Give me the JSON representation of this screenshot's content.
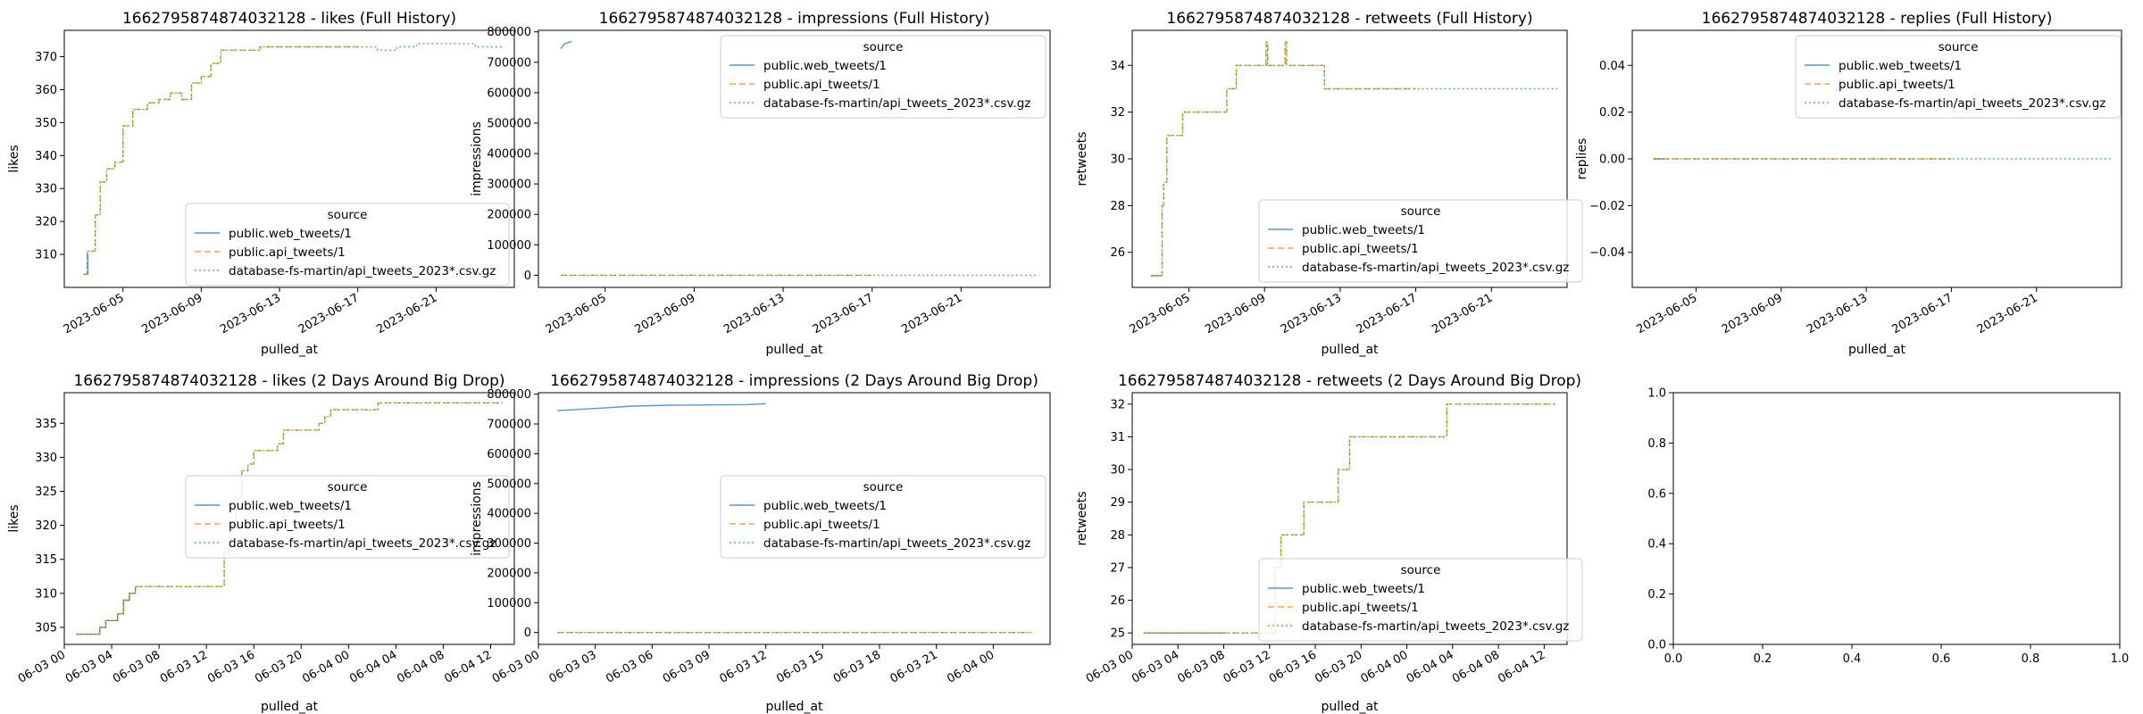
{
  "figure": {
    "background": "#ffffff"
  },
  "legend": {
    "title": "source",
    "entries": [
      {
        "label": "public.web_tweets/1",
        "color": "#1f77b4",
        "style": "solid"
      },
      {
        "label": "public.api_tweets/1",
        "color": "#ff7f0e",
        "style": "dashed"
      },
      {
        "label": "database-fs-martin/api_tweets_2023*.csv.gz",
        "color": "#2ca02c",
        "style": "dotted"
      }
    ]
  },
  "chart_data": [
    {
      "title": "1662795874874032128 - likes (Full History)",
      "type": "line",
      "xlabel": "pulled_at",
      "ylabel": "likes",
      "x_type": "date",
      "xlim": [
        "2023-06-02",
        "2023-06-25"
      ],
      "x_ticks": [
        "2023-06-05",
        "2023-06-09",
        "2023-06-13",
        "2023-06-17",
        "2023-06-21"
      ],
      "ylim": [
        300,
        378
      ],
      "y_ticks": [
        "310",
        "320",
        "330",
        "340",
        "350",
        "360",
        "370"
      ],
      "legend_position": "lower-right",
      "series": [
        {
          "name": "public.web_tweets/1",
          "x": [
            "2023-06-03 00:00",
            "2023-06-03 05:00"
          ],
          "y": [
            304,
            310
          ]
        },
        {
          "name": "public.api_tweets/1",
          "x": [
            "2023-06-03 00:00",
            "2023-06-03 04:00",
            "2023-06-03 10:00",
            "2023-06-03 14:00",
            "2023-06-03 20:00",
            "2023-06-04 04:00",
            "2023-06-04 14:00",
            "2023-06-05 00:00",
            "2023-06-05 12:00",
            "2023-06-06 06:00",
            "2023-06-06 20:00",
            "2023-06-07 10:00",
            "2023-06-08 00:00",
            "2023-06-08 12:00",
            "2023-06-09 00:00",
            "2023-06-09 12:00",
            "2023-06-10 00:00",
            "2023-06-11 00:00",
            "2023-06-12 00:00",
            "2023-06-13 00:00",
            "2023-06-14 00:00",
            "2023-06-16 00:00",
            "2023-06-17 00:00"
          ],
          "y": [
            304,
            311,
            311,
            322,
            332,
            336,
            338,
            349,
            354,
            356,
            357,
            359,
            357,
            362,
            364,
            368,
            372,
            372,
            373,
            373,
            373,
            373,
            373
          ]
        },
        {
          "name": "database-fs-martin/api_tweets_2023*.csv.gz",
          "x": [
            "2023-06-03 00:00",
            "2023-06-03 04:00",
            "2023-06-03 10:00",
            "2023-06-03 14:00",
            "2023-06-03 20:00",
            "2023-06-04 04:00",
            "2023-06-04 14:00",
            "2023-06-05 00:00",
            "2023-06-05 12:00",
            "2023-06-06 06:00",
            "2023-06-06 20:00",
            "2023-06-07 10:00",
            "2023-06-08 00:00",
            "2023-06-08 12:00",
            "2023-06-09 00:00",
            "2023-06-09 12:00",
            "2023-06-10 00:00",
            "2023-06-11 00:00",
            "2023-06-12 00:00",
            "2023-06-13 00:00",
            "2023-06-14 00:00",
            "2023-06-16 00:00",
            "2023-06-17 00:00",
            "2023-06-18 00:00",
            "2023-06-19 00:00",
            "2023-06-20 00:00",
            "2023-06-21 00:00",
            "2023-06-22 00:00",
            "2023-06-23 00:00",
            "2023-06-24 12:00"
          ],
          "y": [
            304,
            311,
            311,
            322,
            332,
            336,
            338,
            349,
            354,
            356,
            357,
            359,
            357,
            362,
            364,
            368,
            372,
            372,
            373,
            373,
            373,
            373,
            373,
            372,
            373,
            374,
            374,
            374,
            373,
            373
          ]
        }
      ]
    },
    {
      "title": "1662795874874032128 - impressions (Full History)",
      "type": "line",
      "xlabel": "pulled_at",
      "ylabel": "impressions",
      "x_type": "date",
      "xlim": [
        "2023-06-02",
        "2023-06-25"
      ],
      "x_ticks": [
        "2023-06-05",
        "2023-06-09",
        "2023-06-13",
        "2023-06-17",
        "2023-06-21"
      ],
      "ylim": [
        -40000,
        805000
      ],
      "y_ticks": [
        "0",
        "100000",
        "200000",
        "300000",
        "400000",
        "500000",
        "600000",
        "700000",
        "800000"
      ],
      "legend_position": "top-right",
      "series": [
        {
          "name": "public.web_tweets/1",
          "x": [
            "2023-06-03 00:00",
            "2023-06-03 04:00",
            "2023-06-03 08:00",
            "2023-06-03 12:00"
          ],
          "y": [
            745000,
            760000,
            765000,
            768000
          ]
        },
        {
          "name": "public.api_tweets/1",
          "x": [
            "2023-06-03 00:00",
            "2023-06-17 00:00"
          ],
          "y": [
            0,
            0
          ]
        },
        {
          "name": "database-fs-martin/api_tweets_2023*.csv.gz",
          "x": [
            "2023-06-03 00:00",
            "2023-06-24 12:00"
          ],
          "y": [
            0,
            0
          ]
        }
      ]
    },
    {
      "title": "1662795874874032128 - retweets (Full History)",
      "type": "line",
      "xlabel": "pulled_at",
      "ylabel": "retweets",
      "x_type": "date",
      "xlim": [
        "2023-06-02",
        "2023-06-25"
      ],
      "x_ticks": [
        "2023-06-05",
        "2023-06-09",
        "2023-06-13",
        "2023-06-17",
        "2023-06-21"
      ],
      "ylim": [
        24.5,
        35.5
      ],
      "y_ticks": [
        "26",
        "28",
        "30",
        "32",
        "34"
      ],
      "legend_position": "lower-right",
      "series": [
        {
          "name": "public.web_tweets/1",
          "x": [
            "2023-06-03 00:00",
            "2023-06-03 12:00"
          ],
          "y": [
            25,
            25
          ]
        },
        {
          "name": "public.api_tweets/1",
          "x": [
            "2023-06-03 00:00",
            "2023-06-03 12:00",
            "2023-06-03 14:00",
            "2023-06-03 16:00",
            "2023-06-03 20:00",
            "2023-06-04 04:00",
            "2023-06-04 16:00",
            "2023-06-05 00:00",
            "2023-06-07 00:00",
            "2023-06-07 12:00",
            "2023-06-09 00:00",
            "2023-06-09 02:00",
            "2023-06-09 04:00",
            "2023-06-10 00:00",
            "2023-06-10 02:00",
            "2023-06-10 04:00",
            "2023-06-12 00:00",
            "2023-06-12 04:00",
            "2023-06-17 00:00"
          ],
          "y": [
            25,
            25,
            28,
            29,
            31,
            31,
            32,
            32,
            33,
            34,
            34,
            35,
            34,
            34,
            35,
            34,
            34,
            33,
            33
          ]
        },
        {
          "name": "database-fs-martin/api_tweets_2023*.csv.gz",
          "x": [
            "2023-06-03 00:00",
            "2023-06-03 12:00",
            "2023-06-03 14:00",
            "2023-06-03 16:00",
            "2023-06-03 20:00",
            "2023-06-04 04:00",
            "2023-06-04 16:00",
            "2023-06-05 00:00",
            "2023-06-07 00:00",
            "2023-06-07 12:00",
            "2023-06-09 00:00",
            "2023-06-09 02:00",
            "2023-06-09 04:00",
            "2023-06-10 00:00",
            "2023-06-10 02:00",
            "2023-06-10 04:00",
            "2023-06-12 00:00",
            "2023-06-12 04:00",
            "2023-06-24 12:00"
          ],
          "y": [
            25,
            25,
            28,
            29,
            31,
            31,
            32,
            32,
            33,
            34,
            34,
            35,
            34,
            34,
            35,
            34,
            34,
            33,
            33
          ]
        }
      ]
    },
    {
      "title": "1662795874874032128 - replies (Full History)",
      "type": "line",
      "xlabel": "pulled_at",
      "ylabel": "replies",
      "x_type": "date",
      "xlim": [
        "2023-06-02",
        "2023-06-25"
      ],
      "x_ticks": [
        "2023-06-05",
        "2023-06-09",
        "2023-06-13",
        "2023-06-17",
        "2023-06-21"
      ],
      "ylim": [
        -0.055,
        0.055
      ],
      "y_ticks": [
        "−0.04",
        "−0.02",
        "0.00",
        "0.02",
        "0.04"
      ],
      "legend_position": "top-right",
      "series": [
        {
          "name": "public.web_tweets/1",
          "x": [
            "2023-06-03 00:00",
            "2023-06-03 12:00"
          ],
          "y": [
            0,
            0
          ]
        },
        {
          "name": "public.api_tweets/1",
          "x": [
            "2023-06-03 00:00",
            "2023-06-17 00:00"
          ],
          "y": [
            0,
            0
          ]
        },
        {
          "name": "database-fs-martin/api_tweets_2023*.csv.gz",
          "x": [
            "2023-06-03 00:00",
            "2023-06-24 12:00"
          ],
          "y": [
            0,
            0
          ]
        }
      ]
    },
    {
      "title": "1662795874874032128 - likes (2 Days Around Big Drop)",
      "type": "line",
      "xlabel": "pulled_at",
      "ylabel": "likes",
      "x_type": "date",
      "xlim": [
        "2023-06-03 00:00",
        "2023-06-04 14:00"
      ],
      "x_ticks": [
        "06-03 00",
        "06-03 04",
        "06-03 08",
        "06-03 12",
        "06-03 16",
        "06-03 20",
        "06-04 00",
        "06-04 04",
        "06-04 08",
        "06-04 12"
      ],
      "x_tick_values": [
        "2023-06-03 00:00",
        "2023-06-03 04:00",
        "2023-06-03 08:00",
        "2023-06-03 12:00",
        "2023-06-03 16:00",
        "2023-06-03 20:00",
        "2023-06-04 00:00",
        "2023-06-04 04:00",
        "2023-06-04 08:00",
        "2023-06-04 12:00"
      ],
      "ylim": [
        302.5,
        339.5
      ],
      "y_ticks": [
        "305",
        "310",
        "315",
        "320",
        "325",
        "330",
        "335"
      ],
      "legend_position": "center-right",
      "series": [
        {
          "name": "public.web_tweets/1",
          "x": [
            "2023-06-03 01:00",
            "2023-06-03 03:00",
            "2023-06-03 03:30",
            "2023-06-03 04:30",
            "2023-06-03 05:00",
            "2023-06-03 05:30",
            "2023-06-03 06:00"
          ],
          "y": [
            304,
            305,
            306,
            307,
            309,
            310,
            311
          ]
        },
        {
          "name": "public.api_tweets/1",
          "x": [
            "2023-06-03 01:00",
            "2023-06-03 03:00",
            "2023-06-03 03:30",
            "2023-06-03 04:30",
            "2023-06-03 05:00",
            "2023-06-03 05:30",
            "2023-06-03 06:00",
            "2023-06-03 13:00",
            "2023-06-03 13:30",
            "2023-06-03 14:00",
            "2023-06-03 14:30",
            "2023-06-03 15:00",
            "2023-06-03 15:30",
            "2023-06-03 16:00",
            "2023-06-03 17:30",
            "2023-06-03 18:00",
            "2023-06-03 18:30",
            "2023-06-03 21:00",
            "2023-06-03 21:30",
            "2023-06-03 22:00",
            "2023-06-03 22:30",
            "2023-06-04 00:00",
            "2023-06-04 02:00",
            "2023-06-04 02:30",
            "2023-06-04 03:00",
            "2023-06-04 13:00"
          ],
          "y": [
            304,
            305,
            306,
            307,
            309,
            310,
            311,
            311,
            316,
            320,
            324,
            328,
            329,
            331,
            331,
            332,
            334,
            334,
            335,
            336,
            337,
            337,
            337,
            338,
            338,
            338
          ]
        },
        {
          "name": "database-fs-martin/api_tweets_2023*.csv.gz",
          "x": [
            "2023-06-03 01:00",
            "2023-06-03 03:00",
            "2023-06-03 03:30",
            "2023-06-03 04:30",
            "2023-06-03 05:00",
            "2023-06-03 05:30",
            "2023-06-03 06:00",
            "2023-06-03 13:00",
            "2023-06-03 13:30",
            "2023-06-03 14:00",
            "2023-06-03 14:30",
            "2023-06-03 15:00",
            "2023-06-03 15:30",
            "2023-06-03 16:00",
            "2023-06-03 17:30",
            "2023-06-03 18:00",
            "2023-06-03 18:30",
            "2023-06-03 21:00",
            "2023-06-03 21:30",
            "2023-06-03 22:00",
            "2023-06-03 22:30",
            "2023-06-04 00:00",
            "2023-06-04 02:00",
            "2023-06-04 02:30",
            "2023-06-04 03:00",
            "2023-06-04 13:00"
          ],
          "y": [
            304,
            305,
            306,
            307,
            309,
            310,
            311,
            311,
            316,
            320,
            324,
            328,
            329,
            331,
            331,
            332,
            334,
            334,
            335,
            336,
            337,
            337,
            337,
            338,
            338,
            338
          ]
        }
      ]
    },
    {
      "title": "1662795874874032128 - impressions (2 Days Around Big Drop)",
      "type": "line",
      "xlabel": "pulled_at",
      "ylabel": "impressions",
      "x_type": "date",
      "xlim": [
        "2023-06-03 00:00",
        "2023-06-04 03:00"
      ],
      "x_ticks": [
        "06-03 00",
        "06-03 03",
        "06-03 06",
        "06-03 09",
        "06-03 12",
        "06-03 15",
        "06-03 18",
        "06-03 21",
        "06-04 00"
      ],
      "x_tick_values": [
        "2023-06-03 00:00",
        "2023-06-03 03:00",
        "2023-06-03 06:00",
        "2023-06-03 09:00",
        "2023-06-03 12:00",
        "2023-06-03 15:00",
        "2023-06-03 18:00",
        "2023-06-03 21:00",
        "2023-06-04 00:00"
      ],
      "ylim": [
        -40000,
        805000
      ],
      "y_ticks": [
        "0",
        "100000",
        "200000",
        "300000",
        "400000",
        "500000",
        "600000",
        "700000",
        "800000"
      ],
      "legend_position": "center-right",
      "series": [
        {
          "name": "public.web_tweets/1",
          "x": [
            "2023-06-03 01:00",
            "2023-06-03 03:00",
            "2023-06-03 05:00",
            "2023-06-03 07:00",
            "2023-06-03 09:00",
            "2023-06-03 11:00",
            "2023-06-03 12:00"
          ],
          "y": [
            745000,
            752000,
            760000,
            763000,
            764000,
            765000,
            768000
          ]
        },
        {
          "name": "public.api_tweets/1",
          "x": [
            "2023-06-03 01:00",
            "2023-06-04 02:00"
          ],
          "y": [
            0,
            0
          ]
        },
        {
          "name": "database-fs-martin/api_tweets_2023*.csv.gz",
          "x": [
            "2023-06-03 01:00",
            "2023-06-04 02:00"
          ],
          "y": [
            0,
            0
          ]
        }
      ]
    },
    {
      "title": "1662795874874032128 - retweets (2 Days Around Big Drop)",
      "type": "line",
      "xlabel": "pulled_at",
      "ylabel": "retweets",
      "x_type": "date",
      "xlim": [
        "2023-06-03 00:00",
        "2023-06-04 14:00"
      ],
      "x_ticks": [
        "06-03 00",
        "06-03 04",
        "06-03 08",
        "06-03 12",
        "06-03 16",
        "06-03 20",
        "06-04 00",
        "06-04 04",
        "06-04 08",
        "06-04 12"
      ],
      "x_tick_values": [
        "2023-06-03 00:00",
        "2023-06-03 04:00",
        "2023-06-03 08:00",
        "2023-06-03 12:00",
        "2023-06-03 16:00",
        "2023-06-03 20:00",
        "2023-06-04 00:00",
        "2023-06-04 04:00",
        "2023-06-04 08:00",
        "2023-06-04 12:00"
      ],
      "ylim": [
        24.65,
        32.35
      ],
      "y_ticks": [
        "25",
        "26",
        "27",
        "28",
        "29",
        "30",
        "31",
        "32"
      ],
      "legend_position": "lower-right",
      "series": [
        {
          "name": "public.web_tweets/1",
          "x": [
            "2023-06-03 01:00",
            "2023-06-03 08:00"
          ],
          "y": [
            25,
            25
          ]
        },
        {
          "name": "public.api_tweets/1",
          "x": [
            "2023-06-03 01:00",
            "2023-06-03 12:00",
            "2023-06-03 12:30",
            "2023-06-03 13:00",
            "2023-06-03 14:30",
            "2023-06-03 15:00",
            "2023-06-03 17:30",
            "2023-06-03 18:00",
            "2023-06-03 18:30",
            "2023-06-03 19:00",
            "2023-06-04 03:00",
            "2023-06-04 03:30",
            "2023-06-04 13:00"
          ],
          "y": [
            25,
            25,
            27,
            28,
            28,
            29,
            29,
            30,
            30,
            31,
            31,
            32,
            32
          ]
        },
        {
          "name": "database-fs-martin/api_tweets_2023*.csv.gz",
          "x": [
            "2023-06-03 01:00",
            "2023-06-03 12:00",
            "2023-06-03 12:30",
            "2023-06-03 13:00",
            "2023-06-03 14:30",
            "2023-06-03 15:00",
            "2023-06-03 17:30",
            "2023-06-03 18:00",
            "2023-06-03 18:30",
            "2023-06-03 19:00",
            "2023-06-04 03:00",
            "2023-06-04 03:30",
            "2023-06-04 13:00"
          ],
          "y": [
            25,
            25,
            27,
            28,
            28,
            29,
            29,
            30,
            30,
            31,
            31,
            32,
            32
          ]
        }
      ]
    },
    {
      "title": "",
      "type": "line",
      "xlabel": "",
      "ylabel": "",
      "x_type": "number",
      "xlim": [
        0,
        1
      ],
      "x_ticks": [
        "0.0",
        "0.2",
        "0.4",
        "0.6",
        "0.8",
        "1.0"
      ],
      "ylim": [
        0,
        1
      ],
      "y_ticks": [
        "0.0",
        "0.2",
        "0.4",
        "0.6",
        "0.8",
        "1.0"
      ],
      "legend_position": "none",
      "series": []
    }
  ]
}
